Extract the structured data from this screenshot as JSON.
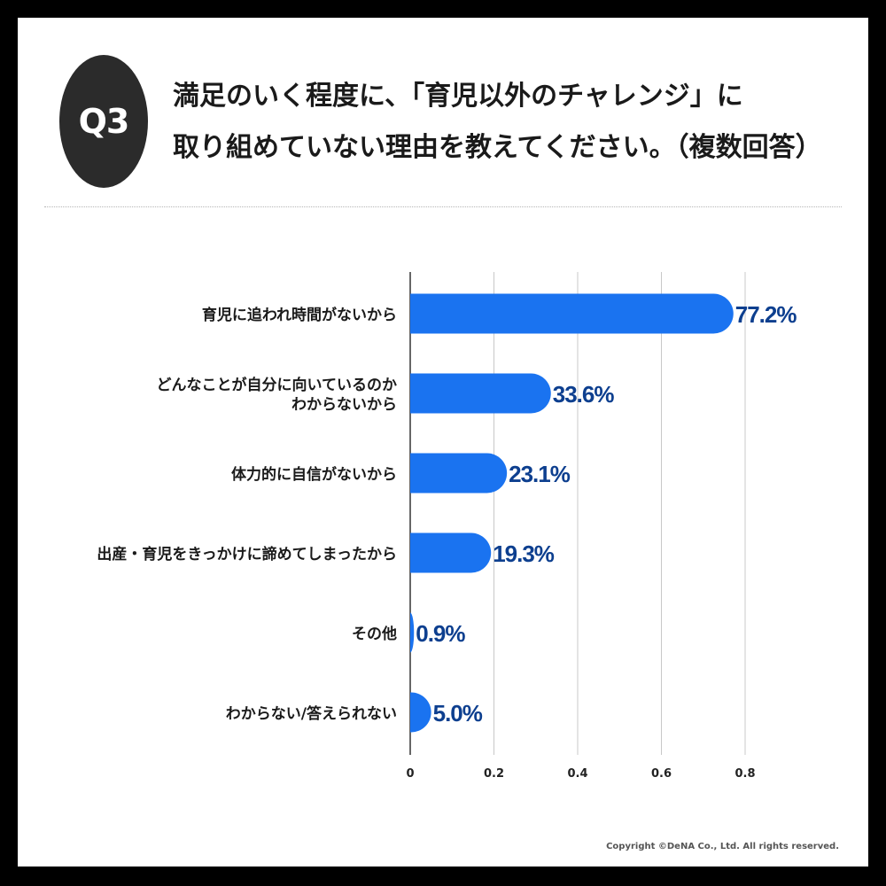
{
  "badge": "Q3",
  "question": {
    "line1": "満足のいく程度に、「育児以外のチャレンジ」に",
    "line2": "取り組めていない理由を教えてください。（複数回答）"
  },
  "copyright": "Copyright ©DeNA Co., Ltd. All rights reserved.",
  "colors": {
    "bar": "#1a73f0",
    "value_label": "#0d3f8f",
    "badge": "#2b2b2b"
  },
  "chart_data": {
    "type": "bar",
    "orientation": "horizontal",
    "categories": [
      [
        "育児に追われ時間がないから"
      ],
      [
        "どんなことが自分に向いているのか",
        "わからないから"
      ],
      [
        "体力的に自信がないから"
      ],
      [
        "出産・育児をきっかけに諦めてしまったから"
      ],
      [
        "その他"
      ],
      [
        "わからない/答えられない"
      ]
    ],
    "values": [
      0.772,
      0.336,
      0.231,
      0.193,
      0.009,
      0.05
    ],
    "value_labels": [
      "77.2%",
      "33.6%",
      "23.1%",
      "19.3%",
      "0.9%",
      "5.0%"
    ],
    "xlim": [
      0,
      0.8
    ],
    "xticks": [
      0,
      0.2,
      0.4,
      0.6,
      0.8
    ],
    "xtick_labels": [
      "0",
      "0.2",
      "0.4",
      "0.6",
      "0.8"
    ],
    "grid": "vertical"
  }
}
